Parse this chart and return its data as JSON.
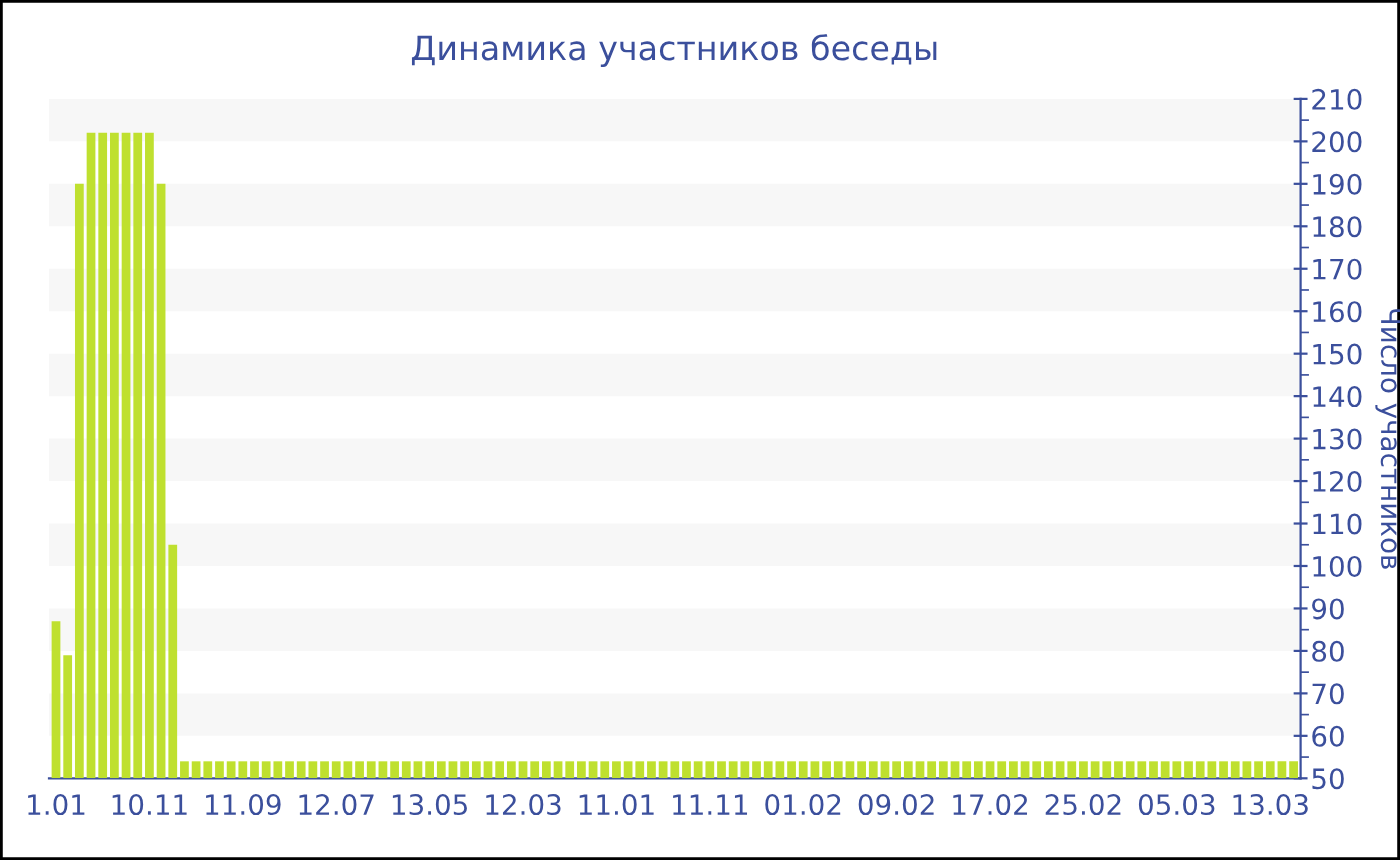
{
  "chart_data": {
    "type": "bar",
    "title": "Динамика участников беседы",
    "ylabel": "Число участников",
    "categories": [
      "1.01",
      null,
      null,
      null,
      null,
      null,
      null,
      null,
      "10.11",
      null,
      null,
      null,
      null,
      null,
      null,
      null,
      "11.09",
      null,
      null,
      null,
      null,
      null,
      null,
      null,
      "12.07",
      null,
      null,
      null,
      null,
      null,
      null,
      null,
      "13.05",
      null,
      null,
      null,
      null,
      null,
      null,
      null,
      "12.03",
      null,
      null,
      null,
      null,
      null,
      null,
      null,
      "11.01",
      null,
      null,
      null,
      null,
      null,
      null,
      null,
      "11.11",
      null,
      null,
      null,
      null,
      null,
      null,
      null,
      "01.02",
      null,
      null,
      null,
      null,
      null,
      null,
      null,
      "09.02",
      null,
      null,
      null,
      null,
      null,
      null,
      null,
      "17.02",
      null,
      null,
      null,
      null,
      null,
      null,
      null,
      "25.02",
      null,
      null,
      null,
      null,
      null,
      null,
      null,
      "05.03",
      null,
      null,
      null,
      null,
      null,
      null,
      null,
      "13.03",
      null,
      null
    ],
    "values": [
      87,
      79,
      190,
      202,
      202,
      202,
      202,
      202,
      202,
      190,
      105,
      54,
      54,
      54,
      54,
      54,
      54,
      54,
      54,
      54,
      54,
      54,
      54,
      54,
      54,
      54,
      54,
      54,
      54,
      54,
      54,
      54,
      54,
      54,
      54,
      54,
      54,
      54,
      54,
      54,
      54,
      54,
      54,
      54,
      54,
      54,
      54,
      54,
      54,
      54,
      54,
      54,
      54,
      54,
      54,
      54,
      54,
      54,
      54,
      54,
      54,
      54,
      54,
      54,
      54,
      54,
      54,
      54,
      54,
      54,
      54,
      54,
      54,
      54,
      54,
      54,
      54,
      54,
      54,
      54,
      54,
      54,
      54,
      54,
      54,
      54,
      54,
      54,
      54,
      54,
      54,
      54,
      54,
      54,
      54,
      54,
      54,
      54,
      54,
      54,
      54,
      54,
      54,
      54,
      54,
      54,
      54
    ],
    "color": "#bfe02f",
    "ylim": [
      50,
      210
    ],
    "yticks": [
      50,
      60,
      70,
      80,
      90,
      100,
      110,
      120,
      130,
      140,
      150,
      160,
      170,
      180,
      190,
      200,
      210
    ],
    "bands": [
      {
        "axis": "y",
        "from": 60,
        "to": 70,
        "color": "#f7f7f7"
      },
      {
        "axis": "y",
        "from": 80,
        "to": 90,
        "color": "#f7f7f7"
      },
      {
        "axis": "y",
        "from": 100,
        "to": 110,
        "color": "#f7f7f7"
      },
      {
        "axis": "y",
        "from": 120,
        "to": 130,
        "color": "#f7f7f7"
      },
      {
        "axis": "y",
        "from": 140,
        "to": 150,
        "color": "#f7f7f7"
      },
      {
        "axis": "y",
        "from": 160,
        "to": 170,
        "color": "#f7f7f7"
      },
      {
        "axis": "y",
        "from": 180,
        "to": 190,
        "color": "#f7f7f7"
      },
      {
        "axis": "y",
        "from": 200,
        "to": 210,
        "color": "#f7f7f7"
      }
    ]
  }
}
